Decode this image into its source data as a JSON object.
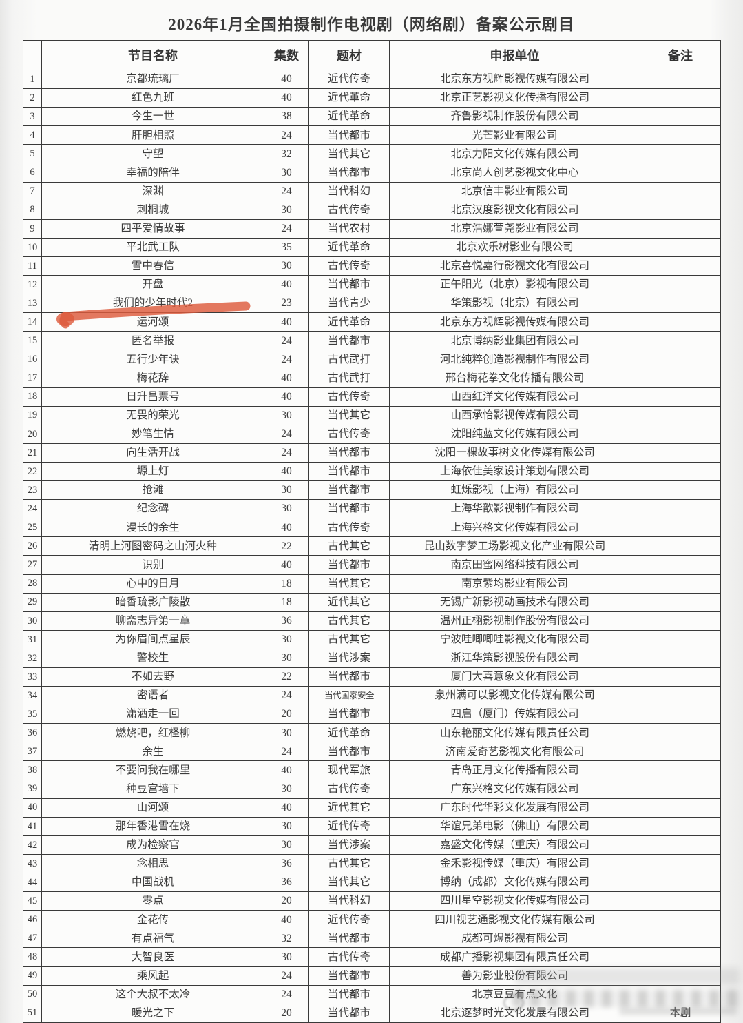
{
  "page": {
    "title": "2026年1月全国拍摄制作电视剧（网络剧）备案公示剧目"
  },
  "table": {
    "headers": {
      "index": "",
      "name": "节目名称",
      "episodes": "集数",
      "genre": "题材",
      "company": "申报单位",
      "note": "备注"
    },
    "rows": [
      {
        "no": "1",
        "name": "京都琉璃厂",
        "eps": "40",
        "genre": "近代传奇",
        "company": "北京东方视辉影视传媒有限公司",
        "note": ""
      },
      {
        "no": "2",
        "name": "红色九班",
        "eps": "40",
        "genre": "近代革命",
        "company": "北京正艺影视文化传播有限公司",
        "note": ""
      },
      {
        "no": "3",
        "name": "今生一世",
        "eps": "38",
        "genre": "近代革命",
        "company": "齐鲁影视制作股份有限公司",
        "note": ""
      },
      {
        "no": "4",
        "name": "肝胆相照",
        "eps": "24",
        "genre": "当代都市",
        "company": "光芒影业有限公司",
        "note": ""
      },
      {
        "no": "5",
        "name": "守望",
        "eps": "32",
        "genre": "当代其它",
        "company": "北京力阳文化传媒有限公司",
        "note": ""
      },
      {
        "no": "6",
        "name": "幸福的陪伴",
        "eps": "30",
        "genre": "当代都市",
        "company": "北京尚人创艺影视文化中心",
        "note": ""
      },
      {
        "no": "7",
        "name": "深渊",
        "eps": "24",
        "genre": "当代科幻",
        "company": "北京信丰影业有限公司",
        "note": ""
      },
      {
        "no": "8",
        "name": "刺桐城",
        "eps": "30",
        "genre": "古代传奇",
        "company": "北京汉度影视文化有限公司",
        "note": ""
      },
      {
        "no": "9",
        "name": "四平爱情故事",
        "eps": "24",
        "genre": "当代农村",
        "company": "北京浩娜萱尧影业有限公司",
        "note": ""
      },
      {
        "no": "10",
        "name": "平北武工队",
        "eps": "35",
        "genre": "近代革命",
        "company": "北京欢乐树影业有限公司",
        "note": ""
      },
      {
        "no": "11",
        "name": "雪中春信",
        "eps": "30",
        "genre": "古代传奇",
        "company": "北京喜悦嘉行影视文化有限公司",
        "note": ""
      },
      {
        "no": "12",
        "name": "开盘",
        "eps": "40",
        "genre": "当代都市",
        "company": "正午阳光（北京）影视有限公司",
        "note": ""
      },
      {
        "no": "13",
        "name": "我们的少年时代2",
        "eps": "23",
        "genre": "当代青少",
        "company": "华策影视（北京）有限公司",
        "note": ""
      },
      {
        "no": "14",
        "name": "运河颂",
        "eps": "40",
        "genre": "近代革命",
        "company": "北京东方视辉影视传媒有限公司",
        "note": ""
      },
      {
        "no": "15",
        "name": "匿名举报",
        "eps": "24",
        "genre": "当代都市",
        "company": "北京博纳影业集团有限公司",
        "note": ""
      },
      {
        "no": "16",
        "name": "五行少年诀",
        "eps": "24",
        "genre": "古代武打",
        "company": "河北纯粹创造影视制作有限公司",
        "note": ""
      },
      {
        "no": "17",
        "name": "梅花辞",
        "eps": "40",
        "genre": "古代武打",
        "company": "邢台梅花拳文化传播有限公司",
        "note": ""
      },
      {
        "no": "18",
        "name": "日升昌票号",
        "eps": "40",
        "genre": "古代传奇",
        "company": "山西红洋文化传媒有限公司",
        "note": ""
      },
      {
        "no": "19",
        "name": "无畏的荣光",
        "eps": "30",
        "genre": "当代其它",
        "company": "山西承怡影视传媒有限公司",
        "note": ""
      },
      {
        "no": "20",
        "name": "妙笔生情",
        "eps": "24",
        "genre": "古代传奇",
        "company": "沈阳纯蓝文化传媒有限公司",
        "note": ""
      },
      {
        "no": "21",
        "name": "向生活开战",
        "eps": "24",
        "genre": "当代都市",
        "company": "沈阳一棵故事树文化传媒有限公司",
        "note": ""
      },
      {
        "no": "22",
        "name": "塬上灯",
        "eps": "40",
        "genre": "当代都市",
        "company": "上海依佳美家设计策划有限公司",
        "note": ""
      },
      {
        "no": "23",
        "name": "抢滩",
        "eps": "30",
        "genre": "当代都市",
        "company": "虹烁影视（上海）有限公司",
        "note": ""
      },
      {
        "no": "24",
        "name": "纪念碑",
        "eps": "30",
        "genre": "当代都市",
        "company": "上海华歆影视制作有限公司",
        "note": ""
      },
      {
        "no": "25",
        "name": "漫长的余生",
        "eps": "40",
        "genre": "古代传奇",
        "company": "上海兴格文化传媒有限公司",
        "note": ""
      },
      {
        "no": "26",
        "name": "清明上河图密码之山河火种",
        "eps": "22",
        "genre": "古代其它",
        "company": "昆山数字梦工场影视文化产业有限公司",
        "note": ""
      },
      {
        "no": "27",
        "name": "识别",
        "eps": "40",
        "genre": "当代都市",
        "company": "南京田蜜网络科技有限公司",
        "note": ""
      },
      {
        "no": "28",
        "name": "心中的日月",
        "eps": "18",
        "genre": "当代其它",
        "company": "南京紫均影业有限公司",
        "note": ""
      },
      {
        "no": "29",
        "name": "暗香疏影广陵散",
        "eps": "18",
        "genre": "近代其它",
        "company": "无锡广新影视动画技术有限公司",
        "note": ""
      },
      {
        "no": "30",
        "name": "聊斋志异第一章",
        "eps": "36",
        "genre": "古代其它",
        "company": "温州正栩影视制作股份有限公司",
        "note": ""
      },
      {
        "no": "31",
        "name": "为你眉间点星辰",
        "eps": "30",
        "genre": "古代其它",
        "company": "宁波哇唧唧哇影视文化有限公司",
        "note": ""
      },
      {
        "no": "32",
        "name": "警校生",
        "eps": "30",
        "genre": "当代涉案",
        "company": "浙江华策影视股份有限公司",
        "note": ""
      },
      {
        "no": "33",
        "name": "不如去野",
        "eps": "22",
        "genre": "当代都市",
        "company": "厦门大喜意象文化有限公司",
        "note": ""
      },
      {
        "no": "34",
        "name": "密语者",
        "eps": "24",
        "genre": "当代国家安全",
        "company": "泉州满可以影视文化传媒有限公司",
        "note": ""
      },
      {
        "no": "35",
        "name": "潇洒走一回",
        "eps": "20",
        "genre": "当代都市",
        "company": "四启（厦门）传媒有限公司",
        "note": ""
      },
      {
        "no": "36",
        "name": "燃烧吧，红柽柳",
        "eps": "30",
        "genre": "近代革命",
        "company": "山东艳丽文化传媒有限责任公司",
        "note": ""
      },
      {
        "no": "37",
        "name": "余生",
        "eps": "24",
        "genre": "当代都市",
        "company": "济南爱奇艺影视文化有限公司",
        "note": ""
      },
      {
        "no": "38",
        "name": "不要问我在哪里",
        "eps": "40",
        "genre": "现代军旅",
        "company": "青岛正月文化传播有限公司",
        "note": ""
      },
      {
        "no": "39",
        "name": "种豆宫墙下",
        "eps": "30",
        "genre": "古代传奇",
        "company": "广东兴格文化传媒有限公司",
        "note": ""
      },
      {
        "no": "40",
        "name": "山河颂",
        "eps": "40",
        "genre": "近代其它",
        "company": "广东时代华彩文化发展有限公司",
        "note": ""
      },
      {
        "no": "41",
        "name": "那年香港雪在烧",
        "eps": "30",
        "genre": "近代传奇",
        "company": "华谊兄弟电影（佛山）有限公司",
        "note": ""
      },
      {
        "no": "42",
        "name": "成为检察官",
        "eps": "30",
        "genre": "当代涉案",
        "company": "嘉盛文化传媒（重庆）有限公司",
        "note": ""
      },
      {
        "no": "43",
        "name": "念相思",
        "eps": "36",
        "genre": "古代其它",
        "company": "金禾影视传媒（重庆）有限公司",
        "note": ""
      },
      {
        "no": "44",
        "name": "中国战机",
        "eps": "36",
        "genre": "当代其它",
        "company": "博纳（成都）文化传媒有限公司",
        "note": ""
      },
      {
        "no": "45",
        "name": "零点",
        "eps": "20",
        "genre": "当代科幻",
        "company": "四川星空影视文化传媒有限公司",
        "note": ""
      },
      {
        "no": "46",
        "name": "金花传",
        "eps": "40",
        "genre": "近代传奇",
        "company": "四川视艺通影视文化传媒有限公司",
        "note": ""
      },
      {
        "no": "47",
        "name": "有点福气",
        "eps": "32",
        "genre": "当代都市",
        "company": "成都可煜影视有限公司",
        "note": ""
      },
      {
        "no": "48",
        "name": "大智良医",
        "eps": "30",
        "genre": "古代传奇",
        "company": "成都广播影视集团有限责任公司",
        "note": ""
      },
      {
        "no": "49",
        "name": "乘风起",
        "eps": "24",
        "genre": "当代都市",
        "company": "善为影业股份有限公司",
        "note": ""
      },
      {
        "no": "50",
        "name": "这个大叔不太冷",
        "eps": "24",
        "genre": "当代都市",
        "company": "北京豆豆有点文化",
        "note": ""
      },
      {
        "no": "51",
        "name": "暖光之下",
        "eps": "20",
        "genre": "当代都市",
        "company": "北京逐梦时光文化发展有限公司",
        "note": "本剧"
      }
    ]
  },
  "annotations": {
    "red_marker": {
      "description": "hand-drawn red marker stroke underlining row 13 program name",
      "target_row": "13",
      "color": "#dd5a3c"
    },
    "watermark_smudge": {
      "description": "blurred watermark smear over bottom-right cells",
      "color": "#9a9a9a"
    }
  }
}
